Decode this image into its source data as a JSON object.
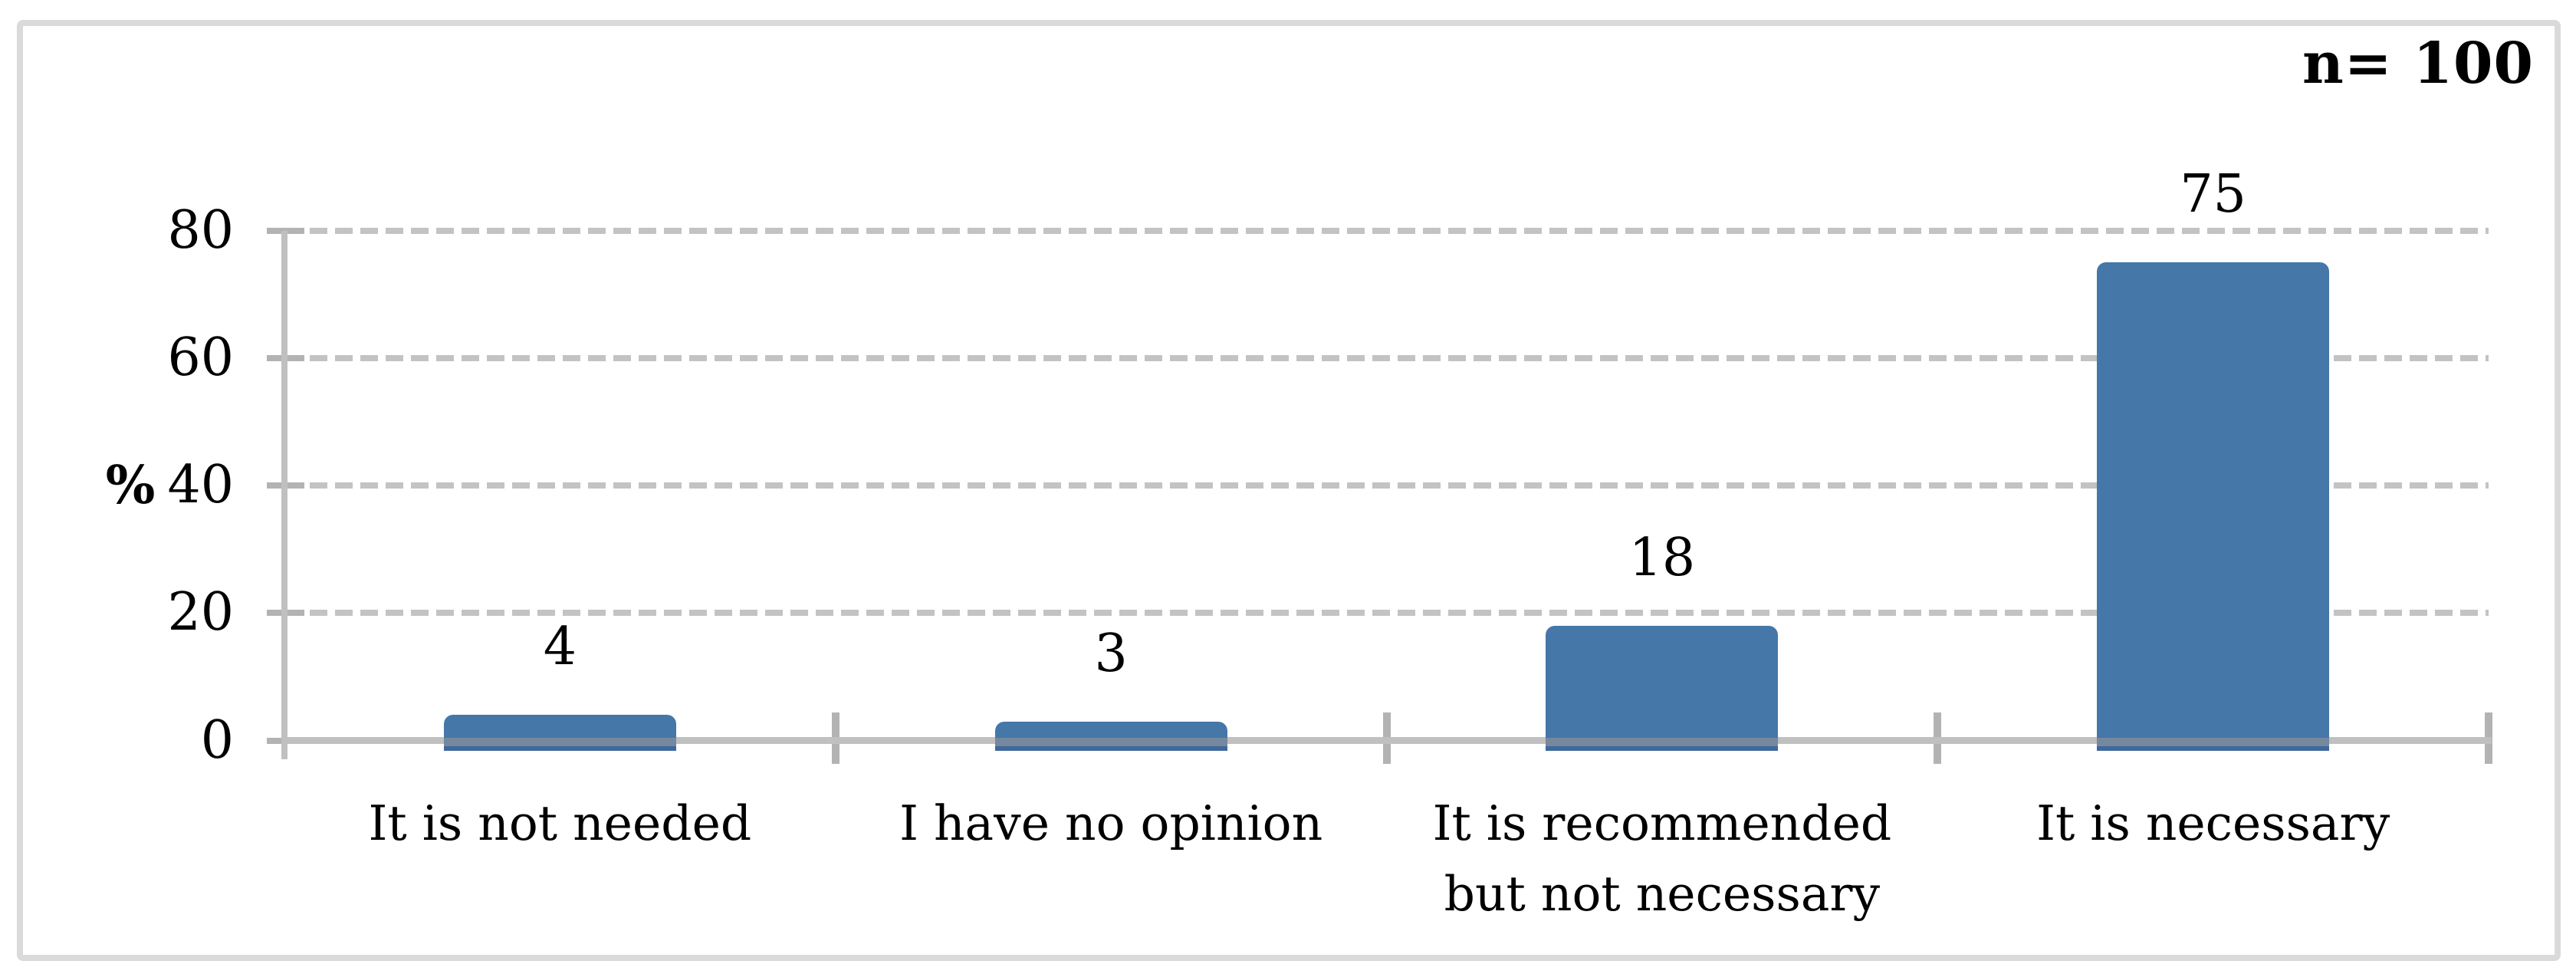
{
  "chart_data": {
    "type": "bar",
    "title": "",
    "annotation": "n= 100",
    "categories": [
      "It is not needed",
      "I have no opinion",
      "It is recommended but not necessary",
      "It is necessary"
    ],
    "values": [
      4,
      3,
      18,
      75
    ],
    "xlabel": "",
    "ylabel": "%",
    "ylim": [
      0,
      80
    ],
    "yticks": [
      0,
      20,
      40,
      60,
      80
    ],
    "grid": "horizontal-dashed",
    "legend_position": "none",
    "colors": {
      "bar_fill": "#4577a9",
      "bar_bottom_shade": "#76889e",
      "bar_bottom_edge": "#3f699c",
      "gridline": "#c3c3c3",
      "axis_line": "#c0c0c0",
      "tick_mark": "#b3b3b3",
      "frame_border": "#dadada",
      "text": "#000000",
      "background": "#ffffff"
    }
  }
}
